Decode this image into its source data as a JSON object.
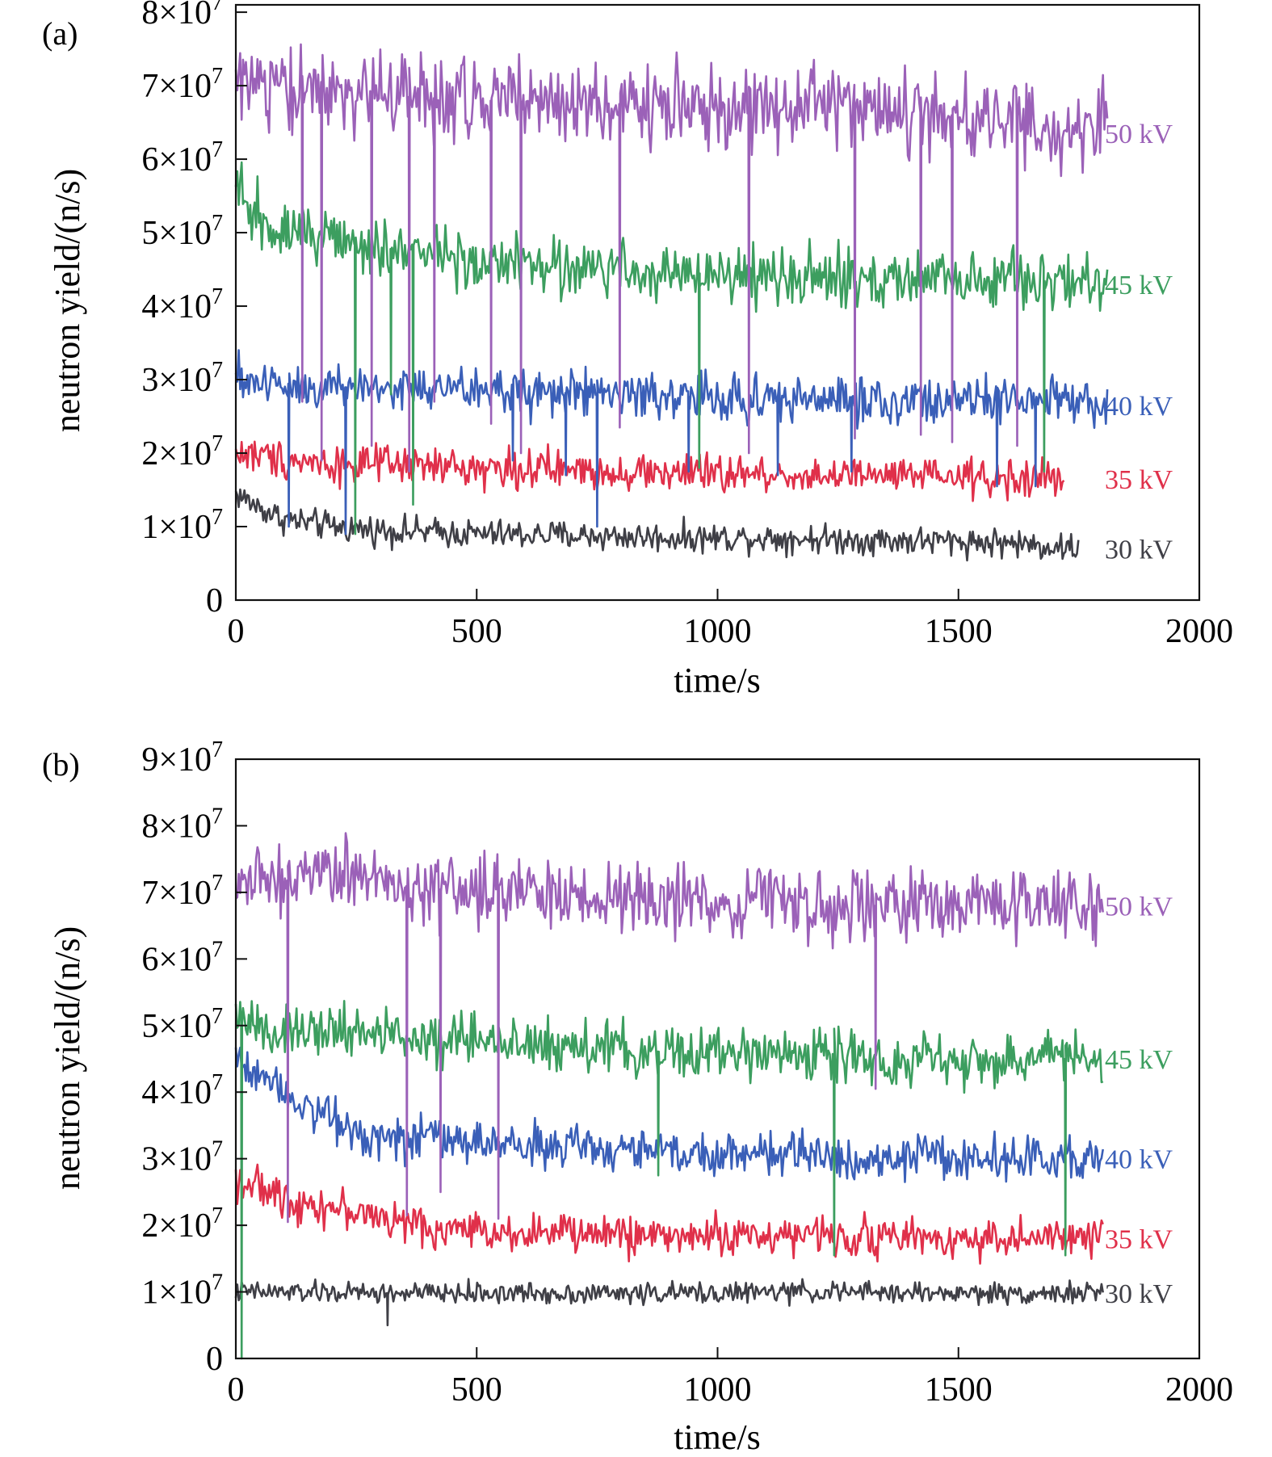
{
  "charts": [
    {
      "panel_label": "(a)",
      "xlabel": "time/s",
      "ylabel": "neutron yield/(n/s)",
      "xticks": [
        {
          "value": 0,
          "label": "0"
        },
        {
          "value": 500,
          "label": "500"
        },
        {
          "value": 1000,
          "label": "1000"
        },
        {
          "value": 1500,
          "label": "1500"
        },
        {
          "value": 2000,
          "label": "2000"
        }
      ],
      "yticks": [
        {
          "value": 0,
          "mantissa": "0",
          "times": "",
          "exp": ""
        },
        {
          "value": 10000000,
          "mantissa": "1",
          "times": "×10",
          "exp": "7"
        },
        {
          "value": 20000000,
          "mantissa": "2",
          "times": "×10",
          "exp": "7"
        },
        {
          "value": 30000000,
          "mantissa": "3",
          "times": "×10",
          "exp": "7"
        },
        {
          "value": 40000000,
          "mantissa": "4",
          "times": "×10",
          "exp": "7"
        },
        {
          "value": 50000000,
          "mantissa": "5",
          "times": "×10",
          "exp": "7"
        },
        {
          "value": 60000000,
          "mantissa": "6",
          "times": "×10",
          "exp": "7"
        },
        {
          "value": 70000000,
          "mantissa": "7",
          "times": "×10",
          "exp": "7"
        },
        {
          "value": 80000000,
          "mantissa": "8",
          "times": "×10",
          "exp": "7"
        }
      ]
    },
    {
      "panel_label": "(b)",
      "xlabel": "time/s",
      "ylabel": "neutron yield/(n/s)",
      "xticks": [
        {
          "value": 0,
          "label": "0"
        },
        {
          "value": 500,
          "label": "500"
        },
        {
          "value": 1000,
          "label": "1000"
        },
        {
          "value": 1500,
          "label": "1500"
        },
        {
          "value": 2000,
          "label": "2000"
        }
      ],
      "yticks": [
        {
          "value": 0,
          "mantissa": "0",
          "times": "",
          "exp": ""
        },
        {
          "value": 10000000,
          "mantissa": "1",
          "times": "×10",
          "exp": "7"
        },
        {
          "value": 20000000,
          "mantissa": "2",
          "times": "×10",
          "exp": "7"
        },
        {
          "value": 30000000,
          "mantissa": "3",
          "times": "×10",
          "exp": "7"
        },
        {
          "value": 40000000,
          "mantissa": "4",
          "times": "×10",
          "exp": "7"
        },
        {
          "value": 50000000,
          "mantissa": "5",
          "times": "×10",
          "exp": "7"
        },
        {
          "value": 60000000,
          "mantissa": "6",
          "times": "×10",
          "exp": "7"
        },
        {
          "value": 70000000,
          "mantissa": "7",
          "times": "×10",
          "exp": "7"
        },
        {
          "value": 80000000,
          "mantissa": "8",
          "times": "×10",
          "exp": "7"
        },
        {
          "value": 90000000,
          "mantissa": "9",
          "times": "×10",
          "exp": "7"
        }
      ]
    }
  ],
  "chart_data": [
    {
      "type": "line",
      "title": "(a)",
      "xlabel": "time/s",
      "ylabel": "neutron yield/(n/s)",
      "xlim": [
        0,
        2000
      ],
      "ylim": [
        0,
        81000000
      ],
      "grid": false,
      "legend": "inline labels at right end of each series",
      "series": [
        {
          "name": "30 kV",
          "color": "#3f3f46",
          "x": [
            0,
            50,
            100,
            200,
            300,
            500,
            700,
            900,
            1100,
            1300,
            1500,
            1600,
            1750
          ],
          "y": [
            14500000,
            12500000,
            11000000,
            10000000,
            9500000,
            9000000,
            8800000,
            8500000,
            8500000,
            8200000,
            8000000,
            7800000,
            7000000
          ],
          "noise": 1500000,
          "dips": []
        },
        {
          "name": "35 kV",
          "color": "#e0304a",
          "x": [
            0,
            200,
            500,
            800,
            1100,
            1400,
            1600,
            1720
          ],
          "y": [
            20000000,
            18500000,
            18000000,
            17500000,
            17000000,
            16800000,
            16500000,
            16500000
          ],
          "noise": 2000000,
          "dips": []
        },
        {
          "name": "40 kV",
          "color": "#3a5fb8",
          "x": [
            0,
            200,
            500,
            800,
            1000,
            1300,
            1600,
            1810
          ],
          "y": [
            30000000,
            29000000,
            28500000,
            28000000,
            27500000,
            27200000,
            27000000,
            26500000
          ],
          "noise": 2500000,
          "dips": [
            {
              "x": 110,
              "y": 10000000
            },
            {
              "x": 228,
              "y": 9000000
            },
            {
              "x": 575,
              "y": 19000000
            },
            {
              "x": 685,
              "y": 17000000
            },
            {
              "x": 750,
              "y": 10000000
            },
            {
              "x": 940,
              "y": 17500000
            },
            {
              "x": 1125,
              "y": 17000000
            },
            {
              "x": 1278,
              "y": 17500000
            },
            {
              "x": 1580,
              "y": 15500000
            },
            {
              "x": 1660,
              "y": 15500000
            }
          ]
        },
        {
          "name": "45 kV",
          "color": "#3c9e5f",
          "x": [
            0,
            50,
            200,
            500,
            800,
            1100,
            1400,
            1650,
            1810
          ],
          "y": [
            55000000,
            52000000,
            49000000,
            46000000,
            45000000,
            44000000,
            43500000,
            43500000,
            43000000
          ],
          "noise": 3000000,
          "dips": [
            {
              "x": 248,
              "y": 9000000
            },
            {
              "x": 322,
              "y": 28000000
            },
            {
              "x": 368,
              "y": 13000000
            },
            {
              "x": 962,
              "y": 18000000
            },
            {
              "x": 1678,
              "y": 17500000
            }
          ]
        },
        {
          "name": "50 kV",
          "color": "#9b61b8",
          "x": [
            0,
            200,
            500,
            800,
            1100,
            1400,
            1650,
            1810
          ],
          "y": [
            70000000,
            69000000,
            68000000,
            67500000,
            67000000,
            66500000,
            65000000,
            63500000
          ],
          "noise": 4500000,
          "dips": [
            {
              "x": 138,
              "y": 27000000
            },
            {
              "x": 178,
              "y": 19000000
            },
            {
              "x": 282,
              "y": 21000000
            },
            {
              "x": 360,
              "y": 17500000
            },
            {
              "x": 412,
              "y": 27000000
            },
            {
              "x": 530,
              "y": 24000000
            },
            {
              "x": 592,
              "y": 20000000
            },
            {
              "x": 797,
              "y": 23500000
            },
            {
              "x": 1065,
              "y": 20000000
            },
            {
              "x": 1285,
              "y": 22000000
            },
            {
              "x": 1422,
              "y": 22500000
            },
            {
              "x": 1487,
              "y": 21500000
            },
            {
              "x": 1622,
              "y": 21000000
            }
          ]
        }
      ]
    },
    {
      "type": "line",
      "title": "(b)",
      "xlabel": "time/s",
      "ylabel": "neutron yield/(n/s)",
      "xlim": [
        0,
        2000
      ],
      "ylim": [
        0,
        90000000
      ],
      "grid": false,
      "legend": "inline labels at right end of each series",
      "series": [
        {
          "name": "30 kV",
          "color": "#3f3f46",
          "x": [
            0,
            300,
            600,
            900,
            1200,
            1500,
            1800
          ],
          "y": [
            10000000,
            9800000,
            9800000,
            9800000,
            10000000,
            9800000,
            9800000
          ],
          "noise": 1200000,
          "dips": [
            {
              "x": 315,
              "y": 5000000
            }
          ]
        },
        {
          "name": "35 kV",
          "color": "#e0304a",
          "x": [
            0,
            100,
            250,
            400,
            600,
            900,
            1200,
            1500,
            1800
          ],
          "y": [
            27000000,
            24000000,
            22000000,
            19500000,
            19000000,
            18500000,
            18500000,
            18000000,
            18000000
          ],
          "noise": 2200000,
          "dips": []
        },
        {
          "name": "40 kV",
          "color": "#3a5fb8",
          "x": [
            0,
            50,
            150,
            250,
            400,
            600,
            900,
            1200,
            1500,
            1800
          ],
          "y": [
            45000000,
            43000000,
            38000000,
            34000000,
            33000000,
            32000000,
            31000000,
            30500000,
            30000000,
            30000000
          ],
          "noise": 2500000,
          "dips": []
        },
        {
          "name": "45 kV",
          "color": "#3c9e5f",
          "x": [
            0,
            100,
            300,
            600,
            900,
            1200,
            1500,
            1800
          ],
          "y": [
            51000000,
            49000000,
            48500000,
            47000000,
            46000000,
            45500000,
            45000000,
            45000000
          ],
          "noise": 3000000,
          "dips": [
            {
              "x": 12,
              "y": 0
            },
            {
              "x": 877,
              "y": 27500000
            },
            {
              "x": 1242,
              "y": 15500000
            },
            {
              "x": 1722,
              "y": 15500000
            }
          ]
        },
        {
          "name": "50 kV",
          "color": "#9b61b8",
          "x": [
            0,
            200,
            400,
            600,
            800,
            1000,
            1200,
            1400,
            1600,
            1800
          ],
          "y": [
            71000000,
            72500000,
            70500000,
            70000000,
            69500000,
            68500000,
            68000000,
            68000000,
            68000000,
            68000000
          ],
          "noise": 4000000,
          "dips": [
            {
              "x": 108,
              "y": 20500000
            },
            {
              "x": 355,
              "y": 21500000
            },
            {
              "x": 425,
              "y": 25000000
            },
            {
              "x": 545,
              "y": 21000000
            },
            {
              "x": 1328,
              "y": 40500000
            }
          ]
        }
      ]
    }
  ]
}
